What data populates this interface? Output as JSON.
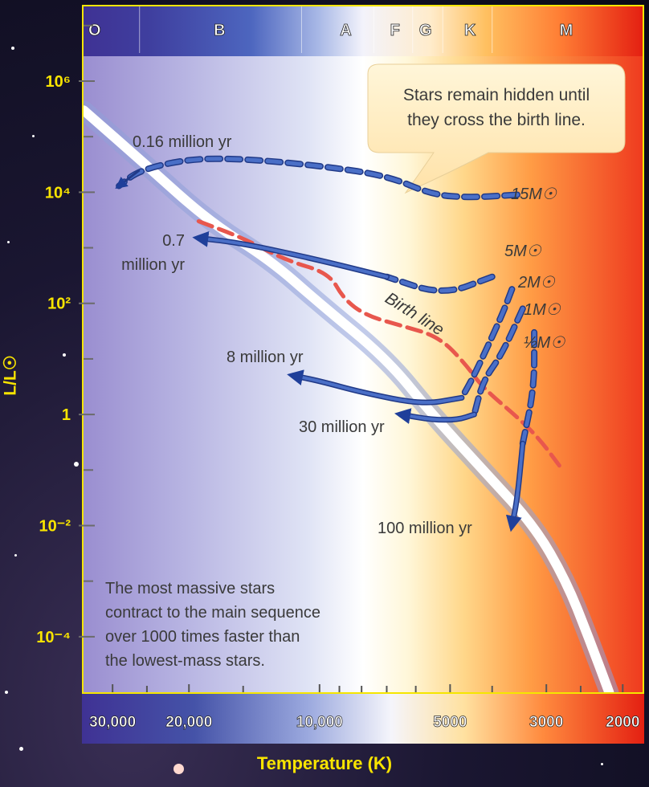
{
  "chart_data": {
    "type": "line",
    "x_scale": "log-reversed",
    "y_scale": "log",
    "xlabel": "Temperature (K)",
    "ylabel": "L/L☉",
    "xlim": [
      35000,
      1800
    ],
    "ylim": [
      1e-05,
      3000000
    ],
    "y_ticks": [
      {
        "value": 1000000,
        "label": "10⁶"
      },
      {
        "value": 10000,
        "label": "10⁴"
      },
      {
        "value": 100,
        "label": "10²"
      },
      {
        "value": 1,
        "label": "1"
      },
      {
        "value": 0.01,
        "label": "10⁻²"
      },
      {
        "value": 0.0001,
        "label": "10⁻⁴"
      }
    ],
    "x_ticks": [
      {
        "value": 30000,
        "label": "30,000"
      },
      {
        "value": 20000,
        "label": "20,000"
      },
      {
        "value": 10000,
        "label": "10,000"
      },
      {
        "value": 5000,
        "label": "5000"
      },
      {
        "value": 3000,
        "label": "3000"
      },
      {
        "value": 2000,
        "label": "2000"
      }
    ],
    "spectral_classes": [
      {
        "label": "O",
        "temp": 33000
      },
      {
        "label": "B",
        "temp": 17000
      },
      {
        "label": "A",
        "temp": 8700
      },
      {
        "label": "F",
        "temp": 6700
      },
      {
        "label": "G",
        "temp": 5700
      },
      {
        "label": "K",
        "temp": 4500
      },
      {
        "label": "M",
        "temp": 2700
      }
    ],
    "main_sequence": [
      [
        35000,
        300000
      ],
      [
        25000,
        30000
      ],
      [
        18000,
        3000
      ],
      [
        13000,
        600
      ],
      [
        10000,
        100
      ],
      [
        7000,
        10
      ],
      [
        5500,
        1
      ],
      [
        4200,
        0.1
      ],
      [
        3200,
        0.01
      ],
      [
        2700,
        0.001
      ],
      [
        2400,
        0.0001
      ],
      [
        2150,
        1e-05
      ]
    ],
    "birth_line": [
      [
        19000,
        3000
      ],
      [
        15000,
        1500
      ],
      [
        12000,
        600
      ],
      [
        9500,
        350
      ],
      [
        8800,
        120
      ],
      [
        7800,
        60
      ],
      [
        6500,
        40
      ],
      [
        5300,
        25
      ],
      [
        4600,
        8
      ],
      [
        4200,
        3
      ],
      [
        3500,
        0.9
      ],
      [
        3100,
        0.35
      ],
      [
        2800,
        0.12
      ]
    ],
    "series": [
      {
        "name": "15M☉",
        "values": [
          [
            3500,
            9000
          ],
          [
            4500,
            8000
          ],
          [
            5500,
            9000
          ],
          [
            7000,
            20000
          ],
          [
            10000,
            30000
          ],
          [
            15000,
            40000
          ],
          [
            20000,
            40000
          ],
          [
            26000,
            25000
          ],
          [
            29000,
            13000
          ]
        ]
      },
      {
        "name": "5M☉",
        "values": [
          [
            4000,
            300
          ],
          [
            5200,
            140
          ],
          [
            7000,
            300
          ],
          [
            10000,
            600
          ],
          [
            15000,
            1200
          ],
          [
            19000,
            1500
          ]
        ]
      },
      {
        "name": "2M☉",
        "values": [
          [
            3600,
            180
          ],
          [
            3800,
            60
          ],
          [
            4400,
            5
          ],
          [
            4700,
            2
          ],
          [
            5800,
            1.5
          ],
          [
            8000,
            2.5
          ],
          [
            10000,
            4
          ],
          [
            11500,
            5
          ]
        ]
      },
      {
        "name": "1M☉",
        "values": [
          [
            3400,
            80
          ],
          [
            3800,
            12
          ],
          [
            4200,
            4
          ],
          [
            4400,
            1
          ],
          [
            4800,
            0.8
          ],
          [
            5500,
            0.8
          ],
          [
            6500,
            1
          ]
        ]
      },
      {
        "name": "½M☉",
        "values": [
          [
            3200,
            30
          ],
          [
            3200,
            3
          ],
          [
            3400,
            0.3
          ],
          [
            3500,
            0.03
          ],
          [
            3600,
            0.01
          ]
        ]
      }
    ],
    "annotations": [
      {
        "text": "0.16 million yr",
        "lines": [
          "0.16 million yr"
        ]
      },
      {
        "text": "0.7 million yr",
        "lines": [
          "0.7",
          "million yr"
        ]
      },
      {
        "text": "8 million yr",
        "lines": [
          "8 million yr"
        ]
      },
      {
        "text": "30 million yr",
        "lines": [
          "30 million yr"
        ]
      },
      {
        "text": "100 million yr",
        "lines": [
          "100 million yr"
        ]
      },
      {
        "text": "Birth line",
        "lines": [
          "Birth line"
        ]
      }
    ],
    "callouts": [
      {
        "lines": [
          "Stars remain hidden until",
          "they cross the birth line."
        ]
      },
      {
        "lines": [
          "The most massive stars",
          "contract to the main sequence",
          "over 1000 times faster than",
          "the lowest-mass stars."
        ]
      }
    ],
    "colors": {
      "track": "#4a6fc7",
      "track_stroke": "#213a88",
      "birth_line": "#e8574d",
      "main_sequence": "#ffffff",
      "axis": "#f8e400"
    }
  }
}
